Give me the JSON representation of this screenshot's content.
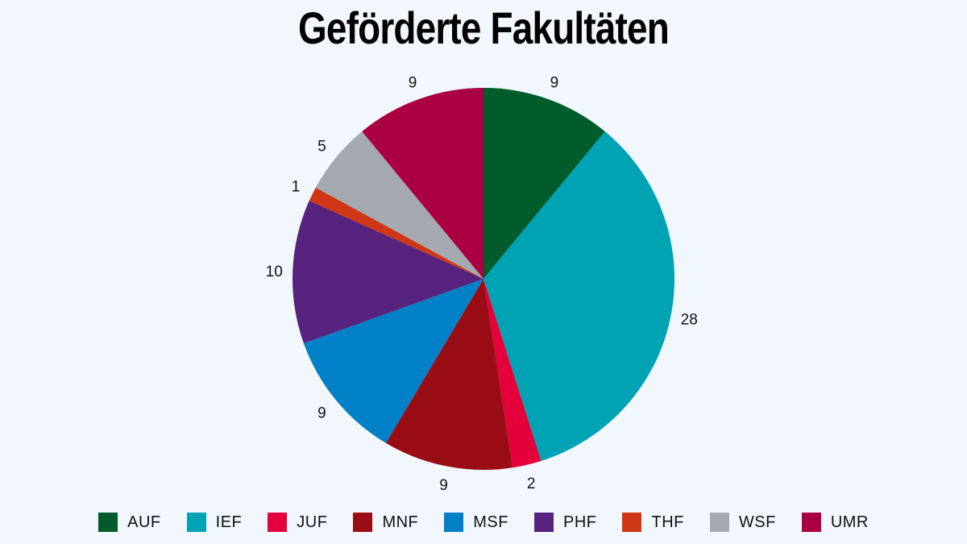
{
  "chart_data": {
    "type": "pie",
    "title": "Geförderte Fakultäten",
    "categories": [
      "AUF",
      "IEF",
      "JUF",
      "MNF",
      "MSF",
      "PHF",
      "THF",
      "WSF",
      "UMR"
    ],
    "values": [
      9,
      28,
      2,
      9,
      9,
      10,
      1,
      5,
      9
    ],
    "colors": [
      "#005c2a",
      "#00a3b4",
      "#e4003a",
      "#9a0d14",
      "#0080c7",
      "#56237e",
      "#cf3716",
      "#a3a9af",
      "#aa0042"
    ],
    "labels": [
      "9",
      "28",
      "2",
      "9",
      "9",
      "10",
      "1",
      "5",
      "9"
    ],
    "legend_position": "bottom"
  }
}
